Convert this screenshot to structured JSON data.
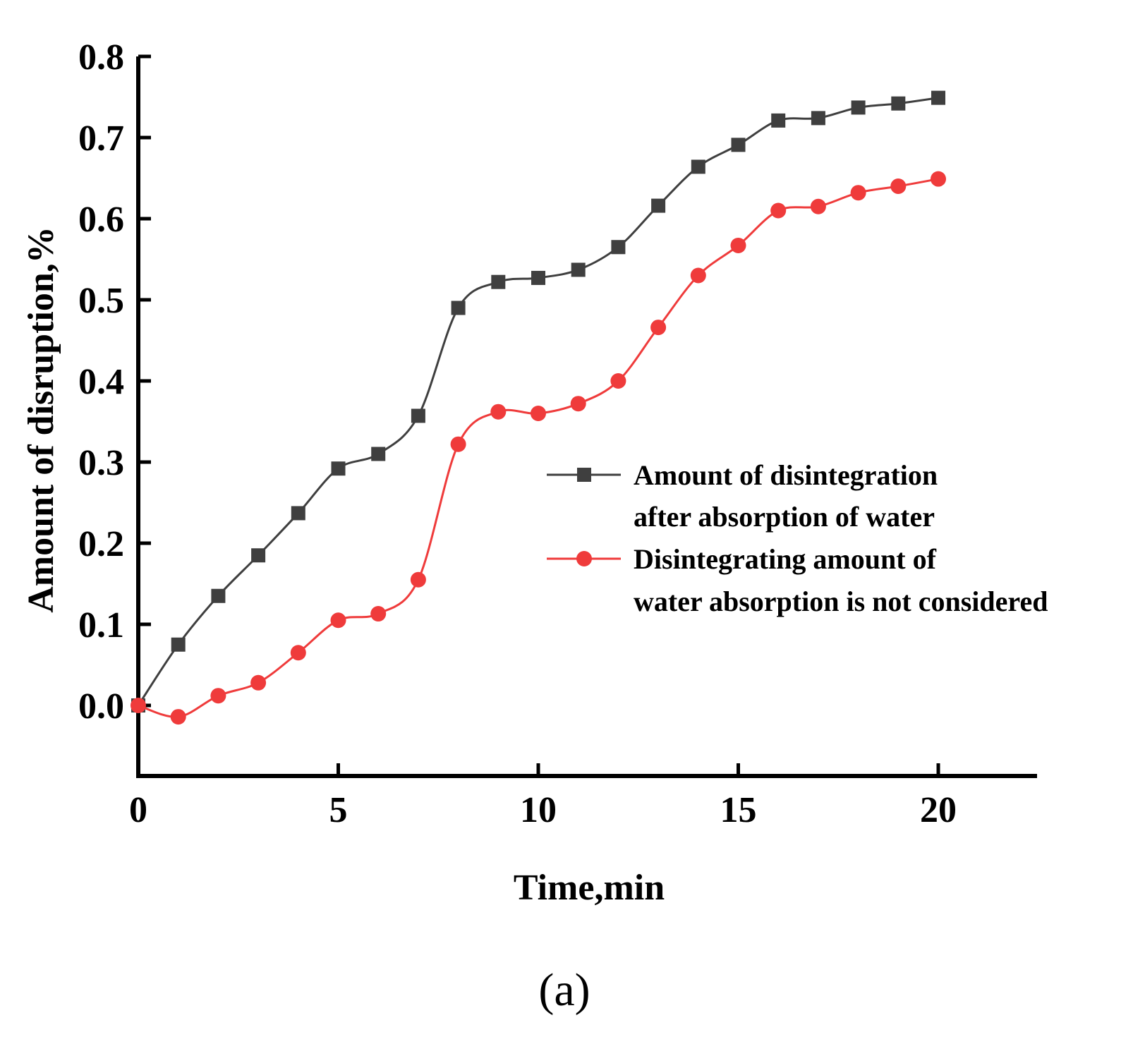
{
  "chart_data": {
    "type": "line",
    "title": "",
    "xlabel": "Time,min",
    "ylabel": "Amount of disruption,%",
    "xlim": [
      0,
      22.6
    ],
    "ylim": [
      -0.09,
      0.8
    ],
    "xticks": [
      0,
      5,
      10,
      15,
      20
    ],
    "xtick_labels": [
      "0",
      "5",
      "10",
      "15",
      "20"
    ],
    "yticks": [
      0.0,
      0.1,
      0.2,
      0.3,
      0.4,
      0.5,
      0.6,
      0.7,
      0.8
    ],
    "ytick_labels": [
      "0.0",
      "0.1",
      "0.2",
      "0.3",
      "0.4",
      "0.5",
      "0.6",
      "0.7",
      "0.8"
    ],
    "grid": false,
    "legend_position": "middle-right",
    "x": [
      0,
      1,
      2,
      3,
      4,
      5,
      6,
      7,
      8,
      9,
      10,
      11,
      12,
      13,
      14,
      15,
      16,
      17,
      18,
      19,
      20
    ],
    "series": [
      {
        "name": "Amount of disintegration after absorption of water",
        "legend_lines": [
          "Amount of disintegration",
          "after absorption of water"
        ],
        "color": "#3f3f3f",
        "marker": "square",
        "values": [
          0.0,
          0.075,
          0.135,
          0.185,
          0.237,
          0.292,
          0.31,
          0.357,
          0.49,
          0.522,
          0.527,
          0.537,
          0.565,
          0.616,
          0.664,
          0.691,
          0.721,
          0.724,
          0.737,
          0.742,
          0.749
        ]
      },
      {
        "name": "Disintegrating amount of water absorption is not considered",
        "legend_lines": [
          "Disintegrating amount of",
          "water absorption is not considered"
        ],
        "color": "#ef3b3b",
        "marker": "circle",
        "values": [
          0.0,
          -0.014,
          0.012,
          0.028,
          0.065,
          0.105,
          0.113,
          0.155,
          0.322,
          0.362,
          0.36,
          0.372,
          0.4,
          0.466,
          0.53,
          0.567,
          0.61,
          0.615,
          0.632,
          0.64,
          0.649
        ]
      }
    ],
    "caption": "(a)"
  }
}
